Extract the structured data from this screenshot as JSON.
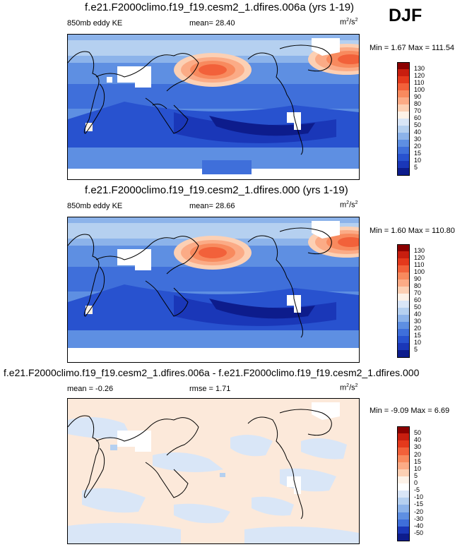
{
  "season": "DJF",
  "panels": [
    {
      "title": "f.e21.F2000climo.f19_f19.cesm2_1.dfires.006a (yrs 1-19)",
      "left_label": "850mb eddy KE",
      "center_label": "mean=  28.40",
      "units_base": "m",
      "units_sup1": "2",
      "units_mid": "/s",
      "units_sup2": "2",
      "minmax": "Min =   1.67 Max = 111.54"
    },
    {
      "title": "f.e21.F2000climo.f19_f19.cesm2_1.dfires.000 (yrs 1-19)",
      "left_label": "850mb eddy KE",
      "center_label": "mean=  28.66",
      "units_base": "m",
      "units_sup1": "2",
      "units_mid": "/s",
      "units_sup2": "2",
      "minmax": "Min =   1.60 Max = 110.80"
    },
    {
      "title": "f.e21.F2000climo.f19_f19.cesm2_1.dfires.006a - f.e21.F2000climo.f19_f19.cesm2_1.dfires.000",
      "left_label": "mean =  -0.26",
      "center_label": "rmse =   1.71",
      "units_base": "m",
      "units_sup1": "2",
      "units_mid": "/s",
      "units_sup2": "2",
      "minmax": "Min =  -9.09 Max =   6.69"
    }
  ],
  "colorbar_abs": {
    "labels": [
      "130",
      "120",
      "110",
      "100",
      "90",
      "80",
      "70",
      "60",
      "50",
      "40",
      "30",
      "20",
      "15",
      "10",
      "5"
    ],
    "colors": [
      "#8b0000",
      "#c81e0f",
      "#e4391c",
      "#f2613a",
      "#f88a5e",
      "#fbab86",
      "#fcd0b4",
      "#fdf2e8",
      "#d9e6f7",
      "#b5d0f0",
      "#8cb3ea",
      "#5e8fe2",
      "#3f6fda",
      "#2852cf",
      "#1a37b8",
      "#0d1c8c"
    ]
  },
  "colorbar_diff": {
    "labels": [
      "50",
      "40",
      "30",
      "20",
      "15",
      "10",
      "5",
      "0",
      "-5",
      "-10",
      "-15",
      "-20",
      "-30",
      "-40",
      "-50"
    ],
    "colors": [
      "#8b0000",
      "#c81e0f",
      "#e4391c",
      "#f2613a",
      "#f88a5e",
      "#fbab86",
      "#fcd0b4",
      "#fdf2e8",
      "#ffffff",
      "#d9e6f7",
      "#b5d0f0",
      "#8cb3ea",
      "#5e8fe2",
      "#3f6fda",
      "#1a37b8",
      "#0d1c8c"
    ]
  }
}
